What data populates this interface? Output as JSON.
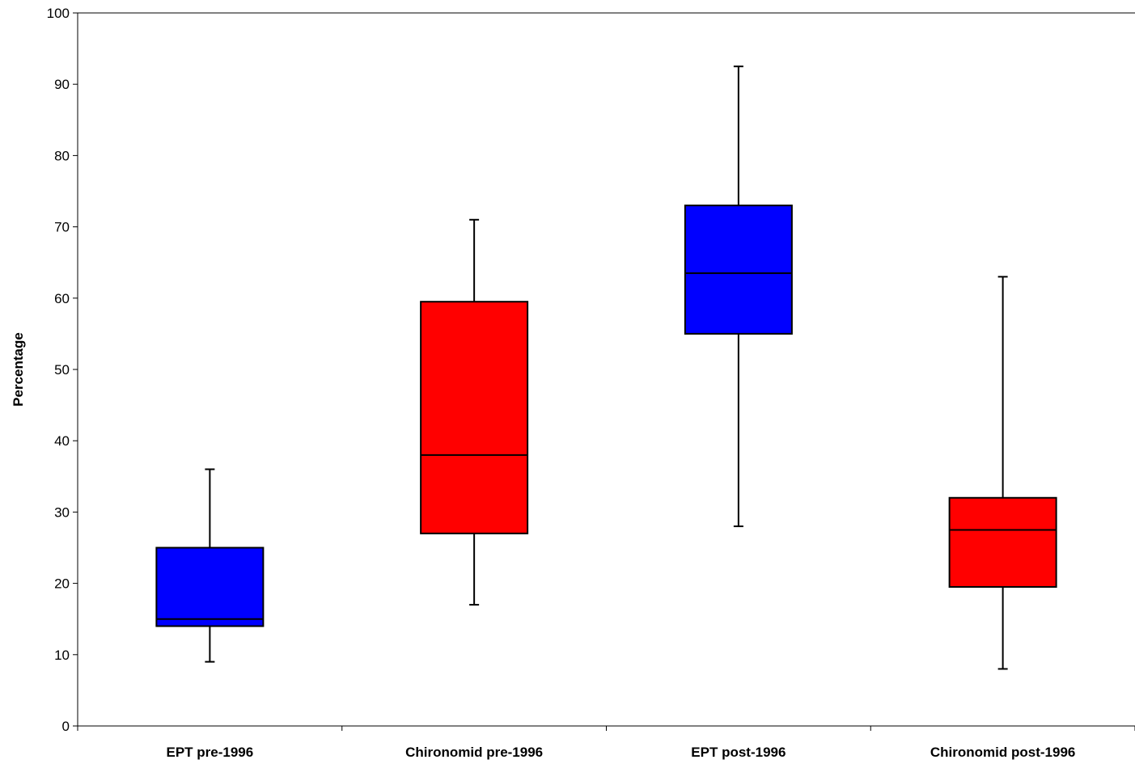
{
  "chart_data": {
    "type": "boxplot",
    "title": "",
    "xlabel": "",
    "ylabel": "Percentage",
    "ylim": [
      0,
      100
    ],
    "yticks": [
      0,
      10,
      20,
      30,
      40,
      50,
      60,
      70,
      80,
      90,
      100
    ],
    "grid": false,
    "categories": [
      "EPT pre-1996",
      "Chironomid pre-1996",
      "EPT post-1996",
      "Chironomid post-1996"
    ],
    "boxes": [
      {
        "category": "EPT pre-1996",
        "min": 9,
        "q1": 14,
        "median": 15,
        "q3": 25,
        "max": 36,
        "color": "#0000ff"
      },
      {
        "category": "Chironomid pre-1996",
        "min": 17,
        "q1": 27,
        "median": 38,
        "q3": 59.5,
        "max": 71,
        "color": "#ff0000"
      },
      {
        "category": "EPT post-1996",
        "min": 28,
        "q1": 55,
        "median": 63.5,
        "q3": 73,
        "max": 92.5,
        "color": "#0000ff"
      },
      {
        "category": "Chironomid post-1996",
        "min": 8,
        "q1": 19.5,
        "median": 27.5,
        "q3": 32,
        "max": 63,
        "color": "#ff0000"
      }
    ]
  }
}
